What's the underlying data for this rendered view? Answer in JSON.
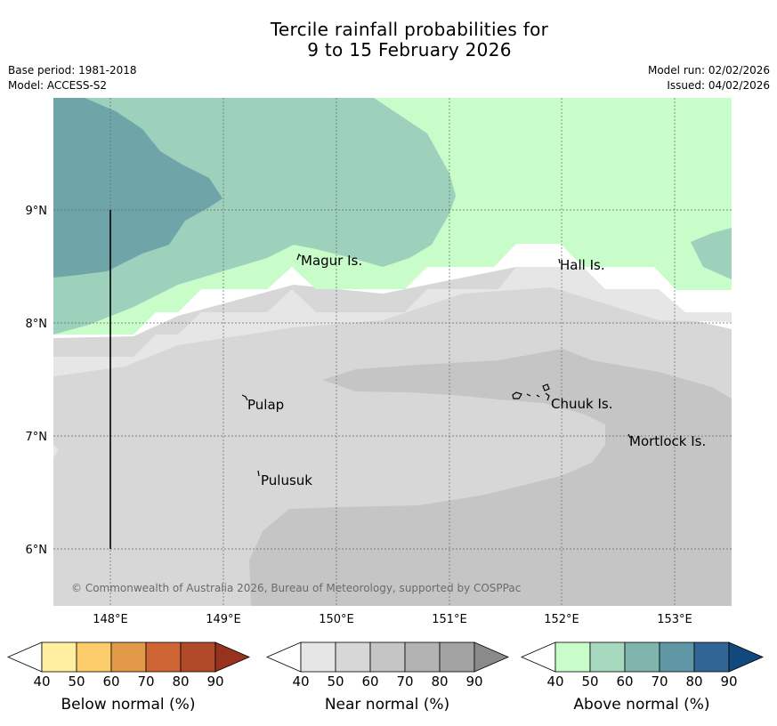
{
  "title": {
    "line1": "Tercile rainfall probabilities for",
    "line2": "9 to 15 February 2026"
  },
  "meta": {
    "base_period": "Base period: 1981-2018",
    "model": "Model: ACCESS-S2",
    "model_run": "Model run: 02/02/2026",
    "issued": "Issued: 04/02/2026"
  },
  "map": {
    "lon_ticks": [
      "148°E",
      "149°E",
      "150°E",
      "151°E",
      "152°E",
      "153°E"
    ],
    "lat_ticks": [
      "9°N",
      "8°N",
      "7°N",
      "6°N"
    ],
    "places": {
      "magur": "Magur Is.",
      "hall": "Hall Is.",
      "pulap": "Pulap",
      "chuuk": "Chuuk Is.",
      "mortlock": "Mortlock Is.",
      "pulusuk": "Pulusuk"
    },
    "copyright": "© Commonwealth of Australia 2026, Bureau of Meteorology, supported by COSPPac"
  },
  "legend": {
    "ticks": [
      "40",
      "50",
      "60",
      "70",
      "80",
      "90"
    ],
    "below": {
      "label": "Below normal (%)",
      "colors": [
        "#ffffff",
        "#ffeea0",
        "#fdcc6a",
        "#e29a48",
        "#cf6535",
        "#b14a28",
        "#96321e"
      ]
    },
    "near": {
      "label": "Near normal (%)",
      "colors": [
        "#ffffff",
        "#e6e6e6",
        "#d7d7d7",
        "#c5c5c5",
        "#b3b3b3",
        "#a2a2a2",
        "#8a8a8a"
      ]
    },
    "above": {
      "label": "Above normal (%)",
      "colors": [
        "#ffffff",
        "#c8fcc8",
        "#a6d9bd",
        "#80b5ad",
        "#5e96a3",
        "#316595",
        "#12497c"
      ]
    }
  },
  "colors": {
    "above_50": "#c8fcc8",
    "above_60": "#9ed1bb",
    "above_70": "#6fa5a9",
    "near_40": "#e6e6e6",
    "near_50": "#d7d7d7",
    "near_60": "#c5c5c5"
  }
}
